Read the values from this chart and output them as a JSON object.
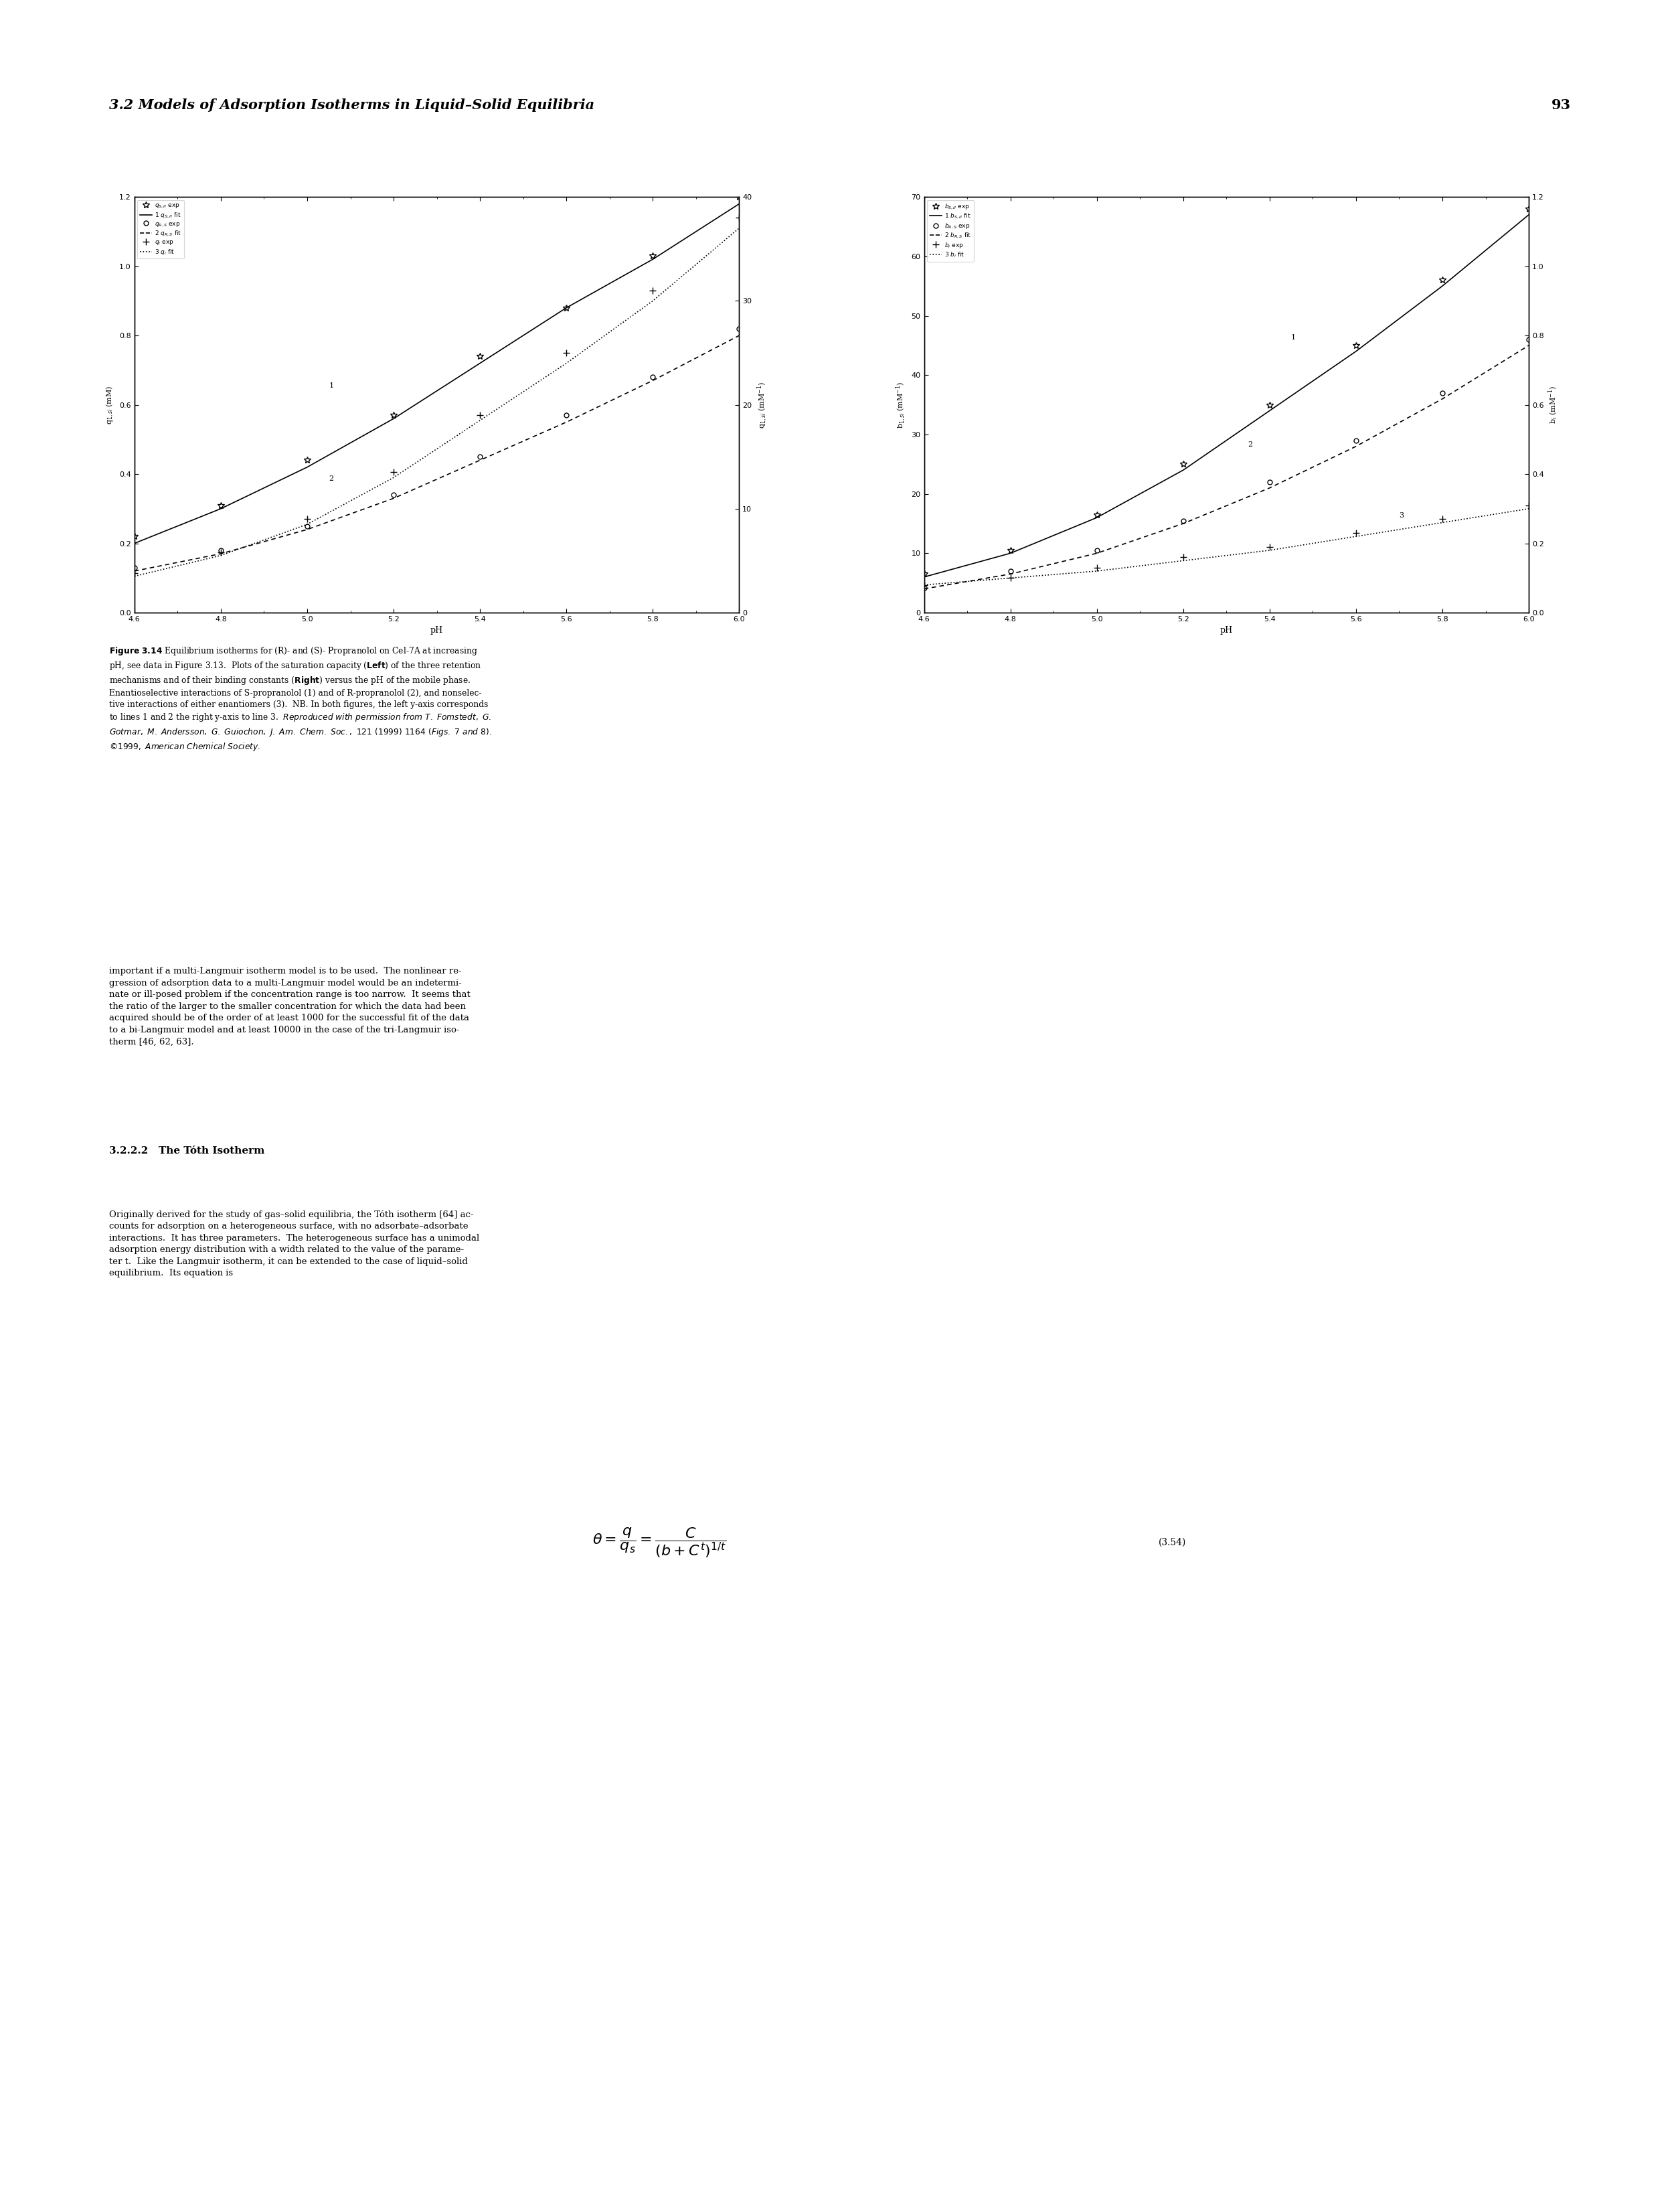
{
  "page_header": "3.2 Models of Adsorption Isotherms in Liquid–Solid Equilibria",
  "page_number": "93",
  "left_plot": {
    "xlabel": "pH",
    "ylabel_left": "q$_{1,si}$ (mM)",
    "ylabel_right": "q$_{1,si}$ (mM$^{-1}$)",
    "xlim": [
      4.6,
      6.0
    ],
    "ylim_left": [
      0.0,
      1.2
    ],
    "ylim_right": [
      0,
      40
    ],
    "xticks": [
      4.6,
      4.8,
      5.0,
      5.2,
      5.4,
      5.6,
      5.8,
      6.0
    ],
    "yticks_left": [
      0.0,
      0.2,
      0.4,
      0.6,
      0.8,
      1.0,
      1.2
    ],
    "yticks_right": [
      0,
      10,
      20,
      30,
      40
    ],
    "legend_entries": [
      {
        "marker": "*",
        "linestyle": "none",
        "label": "q$_{S,II}$ exp"
      },
      {
        "marker": "none",
        "linestyle": "solid",
        "label": "1 q$_{S,II}$ fit"
      },
      {
        "marker": "o",
        "linestyle": "none",
        "label": "q$_{R,S}$ exp"
      },
      {
        "marker": "none",
        "linestyle": "dashed",
        "label": "2 q$_{R,S}$ fit"
      },
      {
        "marker": "+",
        "linestyle": "none",
        "label": "q$_i$ exp"
      },
      {
        "marker": "none",
        "linestyle": "dotted",
        "label": "3 q$_i$ fit"
      }
    ],
    "line1_x": [
      4.6,
      4.8,
      5.0,
      5.2,
      5.4,
      5.6,
      5.8,
      6.0
    ],
    "line1_y_fit": [
      0.2,
      0.3,
      0.42,
      0.56,
      0.72,
      0.88,
      1.02,
      1.18
    ],
    "line1_y_exp": [
      0.22,
      0.31,
      0.44,
      0.57,
      0.74,
      0.88,
      1.03,
      1.2
    ],
    "line2_x": [
      4.6,
      4.8,
      5.0,
      5.2,
      5.4,
      5.6,
      5.8,
      6.0
    ],
    "line2_y_fit": [
      0.12,
      0.17,
      0.24,
      0.33,
      0.44,
      0.55,
      0.67,
      0.8
    ],
    "line2_y_exp": [
      0.13,
      0.18,
      0.25,
      0.34,
      0.45,
      0.57,
      0.68,
      0.82
    ],
    "line3_x": [
      4.6,
      4.8,
      5.0,
      5.2,
      5.4,
      5.6,
      5.8,
      6.0
    ],
    "line3_y_fit_right": [
      3.5,
      5.5,
      8.5,
      13.0,
      18.5,
      24.0,
      30.0,
      37.0
    ],
    "line3_y_exp_right": [
      3.8,
      5.8,
      9.0,
      13.5,
      19.0,
      25.0,
      31.0,
      38.0
    ]
  },
  "right_plot": {
    "xlabel": "pH",
    "ylabel_left": "b$_{1,si}$ (mM$^{-1}$)",
    "ylabel_right": "b$_i$ (mM$^{-1}$)",
    "xlim": [
      4.6,
      6.0
    ],
    "ylim_left": [
      0,
      70
    ],
    "ylim_right": [
      0.0,
      1.2
    ],
    "xticks": [
      4.6,
      4.8,
      5.0,
      5.2,
      5.4,
      5.6,
      5.8,
      6.0
    ],
    "yticks_left": [
      0,
      10,
      20,
      30,
      40,
      50,
      60,
      70
    ],
    "yticks_right": [
      0.0,
      0.2,
      0.4,
      0.6,
      0.8,
      1.0,
      1.2
    ],
    "legend_entries": [
      {
        "marker": "*",
        "linestyle": "none",
        "label": "b$_{S,II}$ exp"
      },
      {
        "marker": "none",
        "linestyle": "solid",
        "label": "1 b$_{S,II}$ fit"
      },
      {
        "marker": "o",
        "linestyle": "none",
        "label": "b$_{R,S}$ exp"
      },
      {
        "marker": "none",
        "linestyle": "dashed",
        "label": "2 b$_{R,S}$ fit"
      },
      {
        "marker": "+",
        "linestyle": "none",
        "label": "b$_i$ exp"
      },
      {
        "marker": "none",
        "linestyle": "dotted",
        "label": "3 b$_i$ fit"
      }
    ],
    "line1_x": [
      4.6,
      4.8,
      5.0,
      5.2,
      5.4,
      5.6,
      5.8,
      6.0
    ],
    "line1_y_fit": [
      6.0,
      10.0,
      16.0,
      24.0,
      34.0,
      44.0,
      55.0,
      67.0
    ],
    "line1_y_exp": [
      6.5,
      10.5,
      16.5,
      25.0,
      35.0,
      45.0,
      56.0,
      68.0
    ],
    "line2_x": [
      4.6,
      4.8,
      5.0,
      5.2,
      5.4,
      5.6,
      5.8,
      6.0
    ],
    "line2_y_fit": [
      4.0,
      6.5,
      10.0,
      15.0,
      21.0,
      28.0,
      36.0,
      45.0
    ],
    "line2_y_exp": [
      4.2,
      7.0,
      10.5,
      15.5,
      22.0,
      29.0,
      37.0,
      46.0
    ],
    "line3_x": [
      4.6,
      4.8,
      5.0,
      5.2,
      5.4,
      5.6,
      5.8,
      6.0
    ],
    "line3_y_fit_right": [
      0.08,
      0.1,
      0.12,
      0.15,
      0.18,
      0.22,
      0.26,
      0.3
    ],
    "line3_y_exp_right": [
      0.08,
      0.1,
      0.13,
      0.16,
      0.19,
      0.23,
      0.27,
      0.31
    ]
  },
  "figure_caption": "Figure 3.14 Equilibrium isotherms for (R)- and (S)- Propranolol on Cel-7A at increasing pH, see data in Figure 3.13.  Plots of the saturation capacity (Left) of the three retention mechanisms and of their binding constants (Right) versus the pH of the mobile phase.  Enantioselective interactions of S-propranolol (1) and of R-propranolol (2), and nonselec-tive interactions of either enantiomers (3).  NB. In both figures, the left y-axis corresponds to lines 1 and 2 the right y-axis to line 3.  Reproduced with permission from T. Fomstedt, G. Gotmar, M. Andersson, G. Guiochon, J. Am. Chem. Soc., 121 (1999) 1164 (Figs. 7 and 8). ©1999, American Chemical Society.",
  "body_text": [
    "important if a multi-Langmuir isotherm model is to be used.  The nonlinear re-",
    "gression of adsorption data to a multi-Langmuir model would be an indetermi-",
    "nate or ill-posed problem if the concentration range is too narrow.  It seems that",
    "the ratio of the larger to the smaller concentration for which the data had been",
    "acquired should be of the order of at least 1000 for the successful fit of the data",
    "to a bi-Langmuir model and at least 10000 in the case of the tri-Langmuir iso-",
    "therm [46, 62, 63]."
  ],
  "section_header": "3.2.2.2   The Tóth Isotherm",
  "section_body": [
    "Originally derived for the study of gas–solid equilibria, the Tóth isotherm [64] ac-",
    "counts for adsorption on a heterogeneous surface, with no adsorbate–adsorbate",
    "interactions.  It has three parameters.  The heterogeneous surface has a unimodal",
    "adsorption energy distribution with a width related to the value of the parame-",
    "ter t.  Like the Langmuir isotherm, it can be extended to the case of liquid–solid",
    "equilibrium.  Its equation is"
  ],
  "equation": "\\theta = \\frac{q}{q_s} = \\frac{C}{(b + C^t)^{1/t}}",
  "equation_label": "(3.54)"
}
